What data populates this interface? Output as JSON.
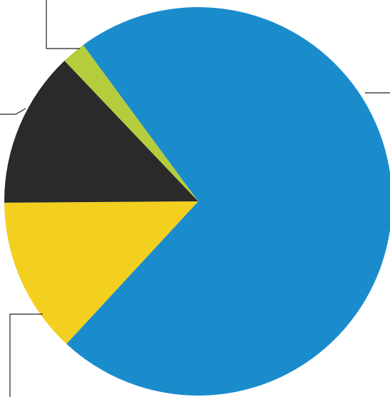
{
  "chart_data": {
    "type": "pie",
    "categories": [
      null,
      null,
      null,
      null
    ],
    "values": [
      72,
      13,
      13,
      2
    ],
    "colors": [
      "#1a8ccc",
      "#f3cf1f",
      "#2a2a2a",
      "#b5cc3c"
    ]
  }
}
